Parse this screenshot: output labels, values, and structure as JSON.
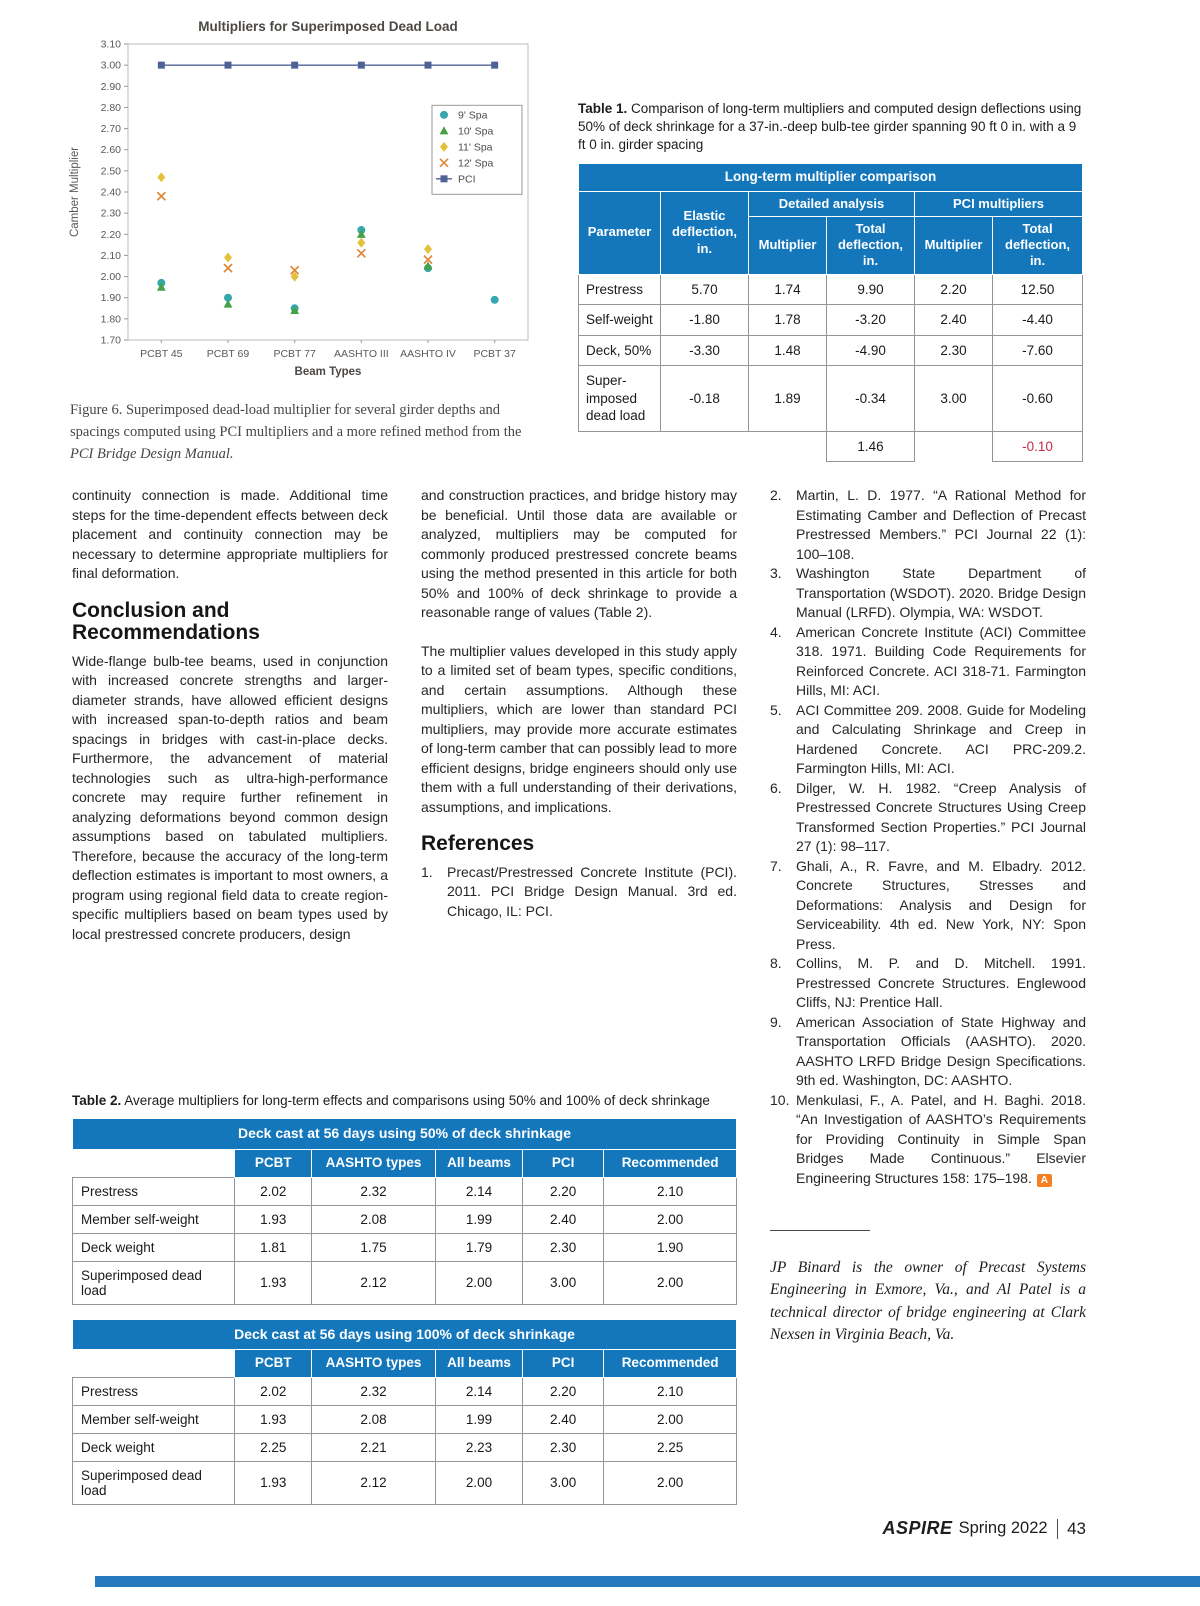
{
  "colors": {
    "table_header_blue": "#1477bc",
    "negative_red": "#c62a49",
    "bottom_bar_blue": "#2779bd",
    "aspire_orange": "#f58021"
  },
  "chart_data": {
    "type": "scatter",
    "title": "Multipliers for Superimposed Dead Load",
    "xlabel": "Beam Types",
    "ylabel": "Camber Multiplier",
    "categories": [
      "PCBT 45",
      "PCBT 69",
      "PCBT 77",
      "AASHTO III",
      "AASHTO IV",
      "PCBT 37"
    ],
    "ylim": [
      1.7,
      3.1
    ],
    "ytick_step": 0.1,
    "grid": false,
    "legend_position": "inside-right",
    "series": [
      {
        "name": "9' Spa",
        "marker": "circle",
        "color": "#35a7ad",
        "values": [
          1.97,
          1.9,
          1.85,
          2.22,
          2.04,
          1.89
        ]
      },
      {
        "name": "10' Spa",
        "marker": "triangle",
        "color": "#47a247",
        "values": [
          1.95,
          1.87,
          1.84,
          2.2,
          2.05,
          null
        ]
      },
      {
        "name": "11' Spa",
        "marker": "diamond",
        "color": "#e3c13b",
        "values": [
          2.47,
          2.09,
          2.0,
          2.16,
          2.13,
          null
        ]
      },
      {
        "name": "12' Spa",
        "marker": "x",
        "color": "#e0883a",
        "values": [
          2.38,
          2.04,
          2.03,
          2.11,
          2.08,
          null
        ]
      },
      {
        "name": "PCI",
        "marker": "square",
        "color": "#4f6296",
        "line": true,
        "values": [
          3.0,
          3.0,
          3.0,
          3.0,
          3.0,
          3.0
        ]
      }
    ]
  },
  "figure_caption": {
    "lead": "Figure 6.",
    "text": " Superimposed dead-load multiplier for several girder depths and spacings computed using PCI multipliers and a more refined method from the ",
    "italic_title": "PCI Bridge Design Manual."
  },
  "table1": {
    "caption_lead": "Table 1.",
    "caption_text": " Comparison of long-term multipliers and computed design deflections using 50% of deck shrinkage for a 37-in.-deep bulb-tee girder spanning 90 ft 0 in. with a 9 ft 0 in. girder spacing",
    "title": "Long-term multiplier comparison",
    "group_headers": [
      "Detailed analysis",
      "PCI multipliers"
    ],
    "col_headers": [
      "Parameter",
      "Elastic deflection, in.",
      "Multiplier",
      "Total deflection, in.",
      "Multiplier",
      "Total deflection, in."
    ],
    "rows": [
      [
        "Prestress",
        "5.70",
        "1.74",
        "9.90",
        "2.20",
        "12.50"
      ],
      [
        "Self-weight",
        "-1.80",
        "1.78",
        "-3.20",
        "2.40",
        "-4.40"
      ],
      [
        "Deck, 50%",
        "-3.30",
        "1.48",
        "-4.90",
        "2.30",
        "-7.60"
      ],
      [
        "Super­imposed dead load",
        "-0.18",
        "1.89",
        "-0.34",
        "3.00",
        "-0.60"
      ]
    ],
    "totals": {
      "detailed_total": "1.46",
      "pci_total": "-0.10"
    }
  },
  "columns": {
    "col1_para1": "continuity connection is made. Additional time steps for the time-dependent effects between deck placement and continuity connection may be necessary to determine appropriate multipliers for final deformation.",
    "conclusion_heading": "Conclusion and Recommendations",
    "col1_para2": "Wide-flange bulb-tee beams, used in conjunction with increased concrete strengths and larger-diameter strands, have allowed efficient designs with increased span-to-depth ratios and beam spacings in bridges with cast-in-place decks. Furthermore, the advancement of material technologies such as ultra-high-performance concrete may require further refinement in analyzing deformations beyond common design assumptions based on tabulated multipliers. Therefore, because the accuracy of the long-term deflection estimates is important to most owners, a program using regional field data to create region-specific multipliers based on beam types used by local prestressed concrete producers, design",
    "col2_para1": "and construction practices, and bridge history may be beneficial. Until those data are available or analyzed, multipliers may be computed for commonly produced prestressed concrete beams using the method presented in this article for both 50% and 100% of deck shrinkage to provide a reasonable range of values (Table 2).",
    "col2_para2": "The multiplier values developed in this study apply to a limited set of beam types, specific conditions, and certain assumptions. Although these multipliers, which are lower than standard PCI multipliers, may provide more accurate estimates of long-term camber that can possibly lead to more efficient designs, bridge engineers should only use them with a full understanding of their derivations, assumptions, and implications."
  },
  "references": {
    "heading": "References",
    "end_icon_letter": "A",
    "items": [
      {
        "num": "1.",
        "text": "Precast/Prestressed Concrete Institute (PCI). 2011. PCI Bridge Design Manual. 3rd ed. Chicago, IL: PCI."
      },
      {
        "num": "2.",
        "text": "Martin, L. D. 1977. “A Rational Method for Estimating Camber and Deflection of Precast Prestressed Members.” PCI Journal 22 (1): 100–108."
      },
      {
        "num": "3.",
        "text": "Washington State Department of Transportation (WSDOT). 2020. Bridge Design Manual (LRFD). Olympia, WA: WSDOT."
      },
      {
        "num": "4.",
        "text": "American Concrete Institute (ACI) Committee 318. 1971. Building Code Requirements for Reinforced Concrete. ACI 318-71. Farmington Hills, MI: ACI."
      },
      {
        "num": "5.",
        "text": "ACI Committee 209. 2008. Guide for Modeling and Calculating Shrinkage and Creep in Hardened Concrete. ACI PRC-209.2. Farmington Hills, MI: ACI."
      },
      {
        "num": "6.",
        "text": "Dilger, W. H. 1982. “Creep Analysis of Prestressed Concrete Structures Using Creep Transformed Section Properties.” PCI Journal 27 (1): 98–117."
      },
      {
        "num": "7.",
        "text": "Ghali, A., R. Favre, and M. Elbadry. 2012. Concrete Structures, Stresses and Deformations: Analysis and Design for Serviceability. 4th ed. New York, NY: Spon Press."
      },
      {
        "num": "8.",
        "text": "Collins, M. P. and D. Mitchell. 1991. Prestressed Concrete Structures. Englewood Cliffs, NJ: Prentice Hall."
      },
      {
        "num": "9.",
        "text": "American Association of State Highway and Transportation Officials (AASHTO). 2020. AASHTO LRFD Bridge Design Specifications. 9th ed. Washington, DC: AASHTO."
      },
      {
        "num": "10.",
        "text": "Menkulasi, F., A. Patel, and H. Baghi. 2018. “An Investigation of AASHTO’s Requirements for Providing Continuity in Simple Span Bridges Made Continuous.” Elsevier Engineering Structures 158: 175–198.",
        "end_icon": true
      }
    ]
  },
  "bio": {
    "text": "JP Binard is the owner of Precast Systems Engineering in Exmore, Va., and Al Patel is a technical director of bridge engineering at Clark Nexsen in Virginia Beach, Va."
  },
  "table2": {
    "caption_lead": "Table 2.",
    "caption_text": " Average multipliers for long-term effects and comparisons using 50% and 100% of deck shrinkage",
    "col_headers": [
      "PCBT",
      "AASHTO types",
      "All beams",
      "PCI",
      "Recommended"
    ],
    "sections": [
      {
        "title": "Deck cast at 56 days using 50% of deck shrinkage",
        "rows": [
          [
            "Prestress",
            "2.02",
            "2.32",
            "2.14",
            "2.20",
            "2.10"
          ],
          [
            "Member self-weight",
            "1.93",
            "2.08",
            "1.99",
            "2.40",
            "2.00"
          ],
          [
            "Deck weight",
            "1.81",
            "1.75",
            "1.79",
            "2.30",
            "1.90"
          ],
          [
            "Superimposed dead load",
            "1.93",
            "2.12",
            "2.00",
            "3.00",
            "2.00"
          ]
        ]
      },
      {
        "title": "Deck cast at 56 days using 100% of deck shrinkage",
        "rows": [
          [
            "Prestress",
            "2.02",
            "2.32",
            "2.14",
            "2.20",
            "2.10"
          ],
          [
            "Member self-weight",
            "1.93",
            "2.08",
            "1.99",
            "2.40",
            "2.00"
          ],
          [
            "Deck weight",
            "2.25",
            "2.21",
            "2.23",
            "2.30",
            "2.25"
          ],
          [
            "Superimposed dead load",
            "1.93",
            "2.12",
            "2.00",
            "3.00",
            "2.00"
          ]
        ]
      }
    ]
  },
  "footer": {
    "brand": "ASPIRE",
    "issue": "Spring 2022",
    "page": "43"
  }
}
